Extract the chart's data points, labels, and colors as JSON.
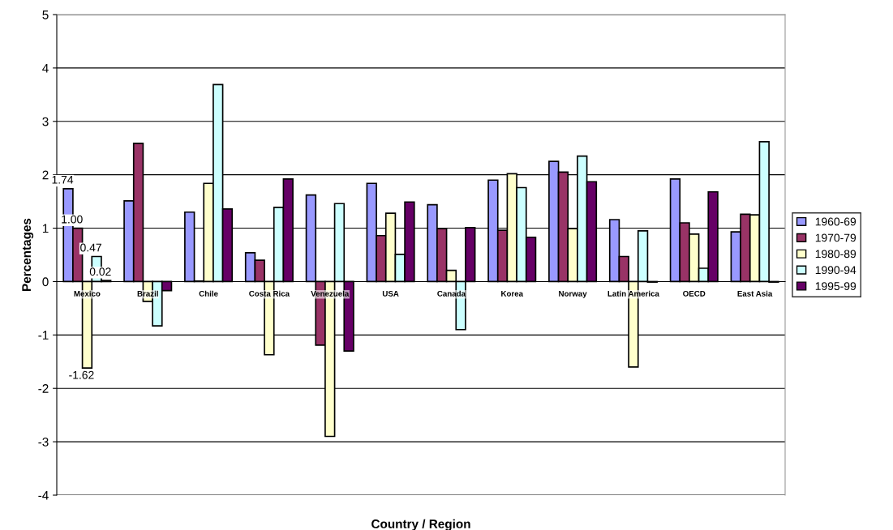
{
  "chart_data": {
    "type": "bar",
    "xlabel": "Country / Region",
    "ylabel": "Percentages",
    "categories": [
      "Mexico",
      "Brazil",
      "Chile",
      "Costa Rica",
      "Venezuela",
      "USA",
      "Canada",
      "Korea",
      "Norway",
      "Latin America",
      "OECD",
      "East Asia"
    ],
    "series": [
      {
        "name": "1960-69",
        "color": "#9999ff",
        "values": [
          1.74,
          1.51,
          1.3,
          0.54,
          1.62,
          1.84,
          1.44,
          1.9,
          2.25,
          1.16,
          1.92,
          0.93
        ],
        "value_labels": [
          "1.74",
          null,
          null,
          null,
          null,
          null,
          null,
          null,
          null,
          null,
          null,
          null
        ]
      },
      {
        "name": "1970-79",
        "color": "#993366",
        "values": [
          1.0,
          2.59,
          0.01,
          0.4,
          -1.19,
          0.86,
          0.99,
          0.96,
          2.05,
          0.47,
          1.1,
          1.26
        ],
        "value_labels": [
          "1.00",
          null,
          null,
          null,
          null,
          null,
          null,
          null,
          null,
          null,
          null,
          null
        ]
      },
      {
        "name": "1980-89",
        "color": "#ffffcc",
        "values": [
          -1.62,
          -0.37,
          1.84,
          -1.37,
          -2.9,
          1.28,
          0.21,
          2.02,
          0.99,
          -1.6,
          0.89,
          1.25
        ],
        "value_labels": [
          "-1.62",
          null,
          null,
          null,
          null,
          null,
          null,
          null,
          null,
          null,
          null,
          null
        ]
      },
      {
        "name": "1990-94",
        "color": "#ccffff",
        "values": [
          0.47,
          -0.83,
          3.69,
          1.39,
          1.46,
          0.51,
          -0.9,
          1.76,
          2.35,
          0.95,
          0.25,
          2.62
        ],
        "value_labels": [
          "0.47",
          null,
          null,
          null,
          null,
          null,
          null,
          null,
          null,
          null,
          null,
          null
        ]
      },
      {
        "name": "1995-99",
        "color": "#660066",
        "values": [
          0.02,
          -0.17,
          1.36,
          1.92,
          -1.3,
          1.49,
          1.01,
          0.83,
          1.87,
          -0.01,
          1.68,
          -0.01
        ],
        "value_labels": [
          "0.02",
          null,
          null,
          null,
          null,
          null,
          null,
          null,
          null,
          null,
          null,
          null
        ]
      }
    ],
    "ylim": [
      -4,
      5
    ],
    "yticks": [
      -4,
      -3,
      -2,
      -1,
      0,
      1,
      2,
      3,
      4,
      5
    ],
    "grid": "y",
    "legend": "right"
  }
}
